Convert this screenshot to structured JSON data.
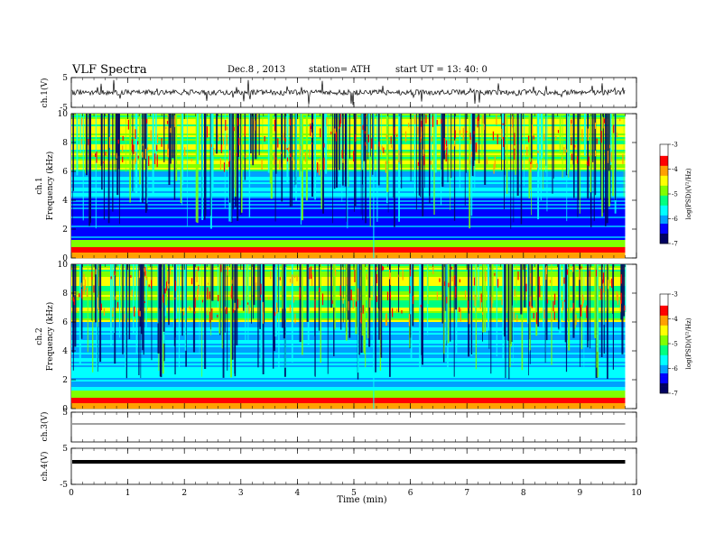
{
  "header": {
    "title": "VLF  Spectra",
    "date": "Dec.8  , 2013",
    "station": "station= ATH",
    "start": "start  UT  =   13: 40: 0"
  },
  "chart_data": [
    {
      "type": "line",
      "panel": "ch1",
      "ylabel": "ch.1(V)",
      "ylim": [
        -5,
        5
      ],
      "yticks": [
        "5",
        "-5"
      ],
      "xlim": [
        0,
        10
      ],
      "description_values": "noisy waveform around 0 V with spikes to about ±3 V, ending near 9.8 min"
    },
    {
      "type": "heatmap",
      "panel": "spec1",
      "ylabel_line1": "ch.1",
      "ylabel_line2": "Frequency  (kHz)",
      "ylim": [
        0,
        10
      ],
      "yticks": [
        "0",
        "2",
        "4",
        "6",
        "8",
        "10"
      ],
      "xlim": [
        0,
        9.8
      ],
      "colorbar": {
        "label": "log(PSD)(V²/Hz)",
        "range": [
          -7,
          -3
        ],
        "ticks": [
          "-3",
          "-4",
          "-5",
          "-6",
          "-7"
        ]
      }
    },
    {
      "type": "heatmap",
      "panel": "spec2",
      "ylabel_line1": "ch.2",
      "ylabel_line2": "Frequency  (kHz)",
      "ylim": [
        0,
        10
      ],
      "yticks": [
        "0",
        "2",
        "4",
        "6",
        "8",
        "10"
      ],
      "xlim": [
        0,
        9.8
      ],
      "colorbar": {
        "label": "log(PSD)(V²/Hz)",
        "range": [
          -7,
          -3
        ],
        "ticks": [
          "-3",
          "-4",
          "-5",
          "-6",
          "-7"
        ]
      }
    },
    {
      "type": "line",
      "panel": "ch3",
      "ylabel": "ch.3(V)",
      "ylim": [
        -5,
        5
      ],
      "yticks": [
        "5"
      ],
      "values_note": "flat trace at about 0 V"
    },
    {
      "type": "line",
      "panel": "ch4",
      "ylabel": "ch.4(V)",
      "ylim": [
        -5,
        5
      ],
      "yticks": [
        "5",
        "-5"
      ],
      "values_note": "thick flat trace at about 0 V"
    }
  ],
  "xaxis": {
    "label": "Time  (min)",
    "ticks": [
      "0",
      "1",
      "2",
      "3",
      "4",
      "5",
      "6",
      "7",
      "8",
      "9",
      "10"
    ]
  },
  "colormap": [
    "#000060",
    "#0000ff",
    "#00a0ff",
    "#00ffff",
    "#00ff80",
    "#80ff00",
    "#ffff00",
    "#ffa000",
    "#ff0000",
    "#ffffff"
  ]
}
